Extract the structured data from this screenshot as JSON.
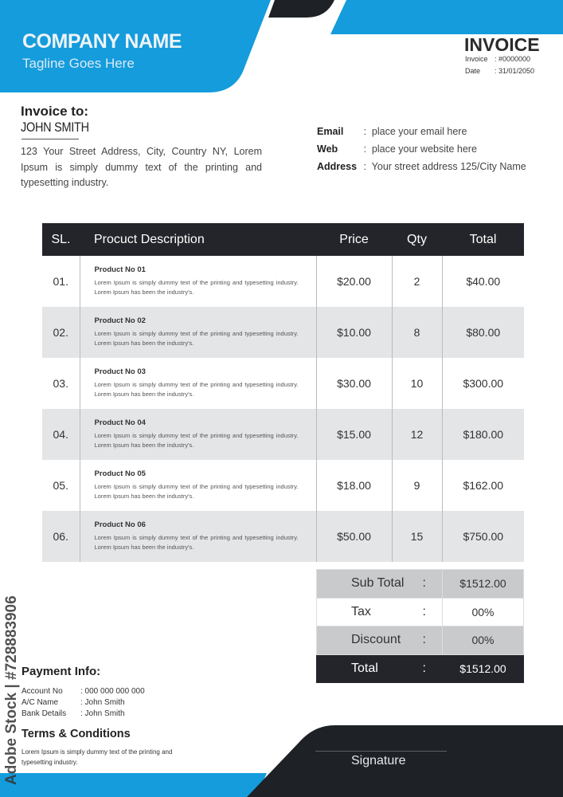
{
  "header": {
    "company": "COMPANY NAME",
    "tagline": "Tagline Goes Here",
    "title": "INVOICE",
    "meta": [
      {
        "label": "Invoice",
        "value": ": #0000000"
      },
      {
        "label": "Date",
        "value": ": 31/01/2050"
      }
    ]
  },
  "bill_to": {
    "heading": "Invoice to:",
    "name": "JOHN SMITH",
    "address": "123 Your Street Address, City, Country NY, Lorem Ipsum is simply dummy text of the printing and typesetting industry."
  },
  "contact": [
    {
      "label": "Email",
      "value": "place your email here"
    },
    {
      "label": "Web",
      "value": "place your website here"
    },
    {
      "label": "Address",
      "value": "Your street address 125/City Name"
    }
  ],
  "table": {
    "headers": [
      "SL.",
      "Procuct Description",
      "Price",
      "Qty",
      "Total"
    ],
    "rows": [
      {
        "sl": "01.",
        "title": "Product No 01",
        "desc": "Lorem Ipsum is simply dummy text of the printing and typesetting industry. Lorem Ipsum has been the industry's.",
        "price": "$20.00",
        "qty": "2",
        "total": "$40.00"
      },
      {
        "sl": "02.",
        "title": "Product No 02",
        "desc": "Lorem Ipsum is simply dummy text of the printing and typesetting industry. Lorem Ipsum has been the industry's.",
        "price": "$10.00",
        "qty": "8",
        "total": "$80.00"
      },
      {
        "sl": "03.",
        "title": "Product No 03",
        "desc": "Lorem Ipsum is simply dummy text of the printing and typesetting industry. Lorem Ipsum has been the industry's.",
        "price": "$30.00",
        "qty": "10",
        "total": "$300.00"
      },
      {
        "sl": "04.",
        "title": "Product No 04",
        "desc": "Lorem Ipsum is simply dummy text of the printing and typesetting industry. Lorem Ipsum has been the industry's.",
        "price": "$15.00",
        "qty": "12",
        "total": "$180.00"
      },
      {
        "sl": "05.",
        "title": "Product No 05",
        "desc": "Lorem Ipsum is simply dummy text of the printing and typesetting industry. Lorem Ipsum has been the industry's.",
        "price": "$18.00",
        "qty": "9",
        "total": "$162.00"
      },
      {
        "sl": "06.",
        "title": "Product No 06",
        "desc": "Lorem Ipsum is simply dummy text of the printing and typesetting industry. Lorem Ipsum has been the industry's.",
        "price": "$50.00",
        "qty": "15",
        "total": "$750.00"
      }
    ]
  },
  "totals": [
    {
      "label": "Sub Total",
      "value": "$1512.00"
    },
    {
      "label": "Tax",
      "value": "00%"
    },
    {
      "label": "Discount",
      "value": "00%"
    },
    {
      "label": "Total",
      "value": "$1512.00"
    }
  ],
  "colon": ":",
  "payment": {
    "heading": "Payment Info:",
    "rows": [
      {
        "label": "Account No",
        "value": ": 000 000 000 000"
      },
      {
        "label": "A/C Name",
        "value": ": John Smith"
      },
      {
        "label": "Bank Details",
        "value": ": John Smith"
      }
    ]
  },
  "terms": {
    "heading": "Terms & Conditions",
    "text": "Lorem Ipsum is simply dummy text of the printing and typesetting  industry."
  },
  "signature": "Signature",
  "watermark": "Adobe Stock | #728883906",
  "colors": {
    "accent": "#149cdc",
    "dark": "#1e2226"
  }
}
